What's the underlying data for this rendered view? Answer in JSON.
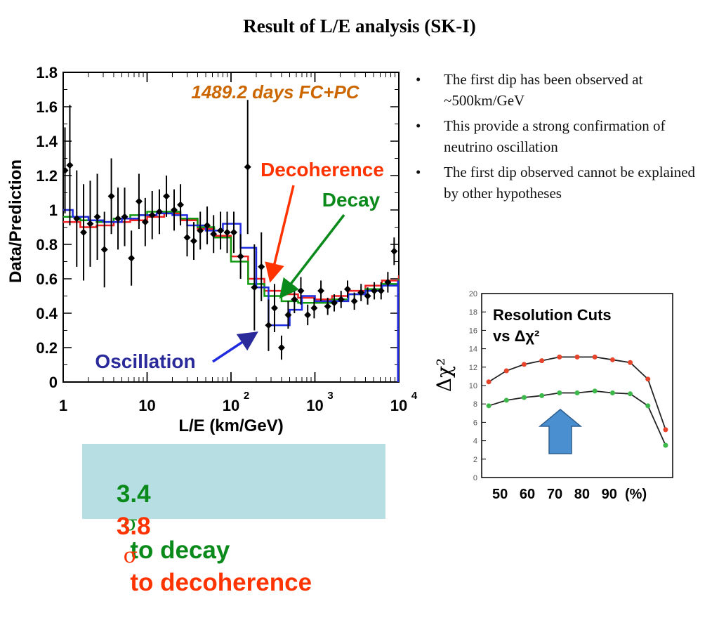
{
  "slide": {
    "title": "Result of L/E analysis (SK-I)",
    "bullets": [
      "The first dip has been observed at ~500km/GeV",
      "This provide a strong confirmation of neutrino oscillation",
      "The first dip observed cannot be explained by other hypotheses"
    ],
    "results": {
      "decay": {
        "value": "3.4",
        "sigma": "σ",
        "text": "to decay",
        "color": "#0a8a1a"
      },
      "decoherence": {
        "value": "3.8",
        "sigma": "σ",
        "text": "to decoherence",
        "color": "#ff3300"
      }
    }
  },
  "chart_data": [
    {
      "type": "scatter",
      "xlabel": "L/E   (km/GeV)",
      "ylabel": "Data/Prediction",
      "xscale": "log",
      "xlim": [
        1,
        10000
      ],
      "ylim": [
        0,
        1.8
      ],
      "xticks": [
        {
          "v": 1,
          "base": "1",
          "exp": ""
        },
        {
          "v": 10,
          "base": "10",
          "exp": ""
        },
        {
          "v": 100,
          "base": "10",
          "exp": "2"
        },
        {
          "v": 1000,
          "base": "10",
          "exp": "3"
        },
        {
          "v": 10000,
          "base": "10",
          "exp": "4"
        }
      ],
      "yticks": [
        "0",
        "0.2",
        "0.4",
        "0.6",
        "0.8",
        "1",
        "1.2",
        "1.4",
        "1.6",
        "1.8"
      ],
      "annotation": {
        "text": "1489.2 days FC+PC",
        "color": "#cc6600"
      },
      "series": [
        {
          "name": "Decoherence",
          "kind": "step",
          "color": "#ee2222",
          "edges": [
            1,
            1.6,
            2.5,
            4,
            6.3,
            10,
            16,
            25,
            40,
            63,
            100,
            160,
            250,
            400,
            630,
            1000,
            1600,
            2500,
            4000,
            6300,
            10000
          ],
          "values": [
            0.93,
            0.9,
            0.91,
            0.93,
            0.94,
            0.96,
            0.98,
            0.94,
            0.89,
            0.85,
            0.73,
            0.6,
            0.53,
            0.51,
            0.49,
            0.48,
            0.5,
            0.53,
            0.56,
            0.59,
            0.62
          ]
        },
        {
          "name": "Decay",
          "kind": "step",
          "color": "#119911",
          "edges": [
            1,
            1.6,
            2.5,
            4,
            6.3,
            10,
            16,
            25,
            40,
            63,
            100,
            160,
            250,
            400,
            630,
            1000,
            1600,
            2500,
            4000,
            6300,
            10000
          ],
          "values": [
            0.96,
            0.94,
            0.93,
            0.95,
            0.97,
            0.99,
            0.99,
            0.95,
            0.9,
            0.84,
            0.7,
            0.57,
            0.5,
            0.47,
            0.46,
            0.46,
            0.48,
            0.51,
            0.54,
            0.57,
            0.6
          ]
        },
        {
          "name": "Oscillation",
          "kind": "step",
          "color": "#1f2bdd",
          "edges": [
            1,
            1.3,
            2,
            3,
            5,
            8,
            13,
            20,
            30,
            50,
            80,
            130,
            200,
            280,
            350,
            500,
            700,
            1000,
            1600,
            2500,
            4000,
            6300,
            10000
          ],
          "values": [
            1.0,
            0.96,
            0.94,
            0.93,
            0.95,
            0.97,
            0.98,
            0.97,
            0.91,
            0.88,
            0.92,
            0.78,
            0.55,
            0.33,
            0.33,
            0.42,
            0.5,
            0.47,
            0.47,
            0.51,
            0.53,
            0.56,
            0.59
          ]
        },
        {
          "name": "Data",
          "kind": "points",
          "color": "#000000",
          "x": [
            1.05,
            1.2,
            1.45,
            1.75,
            2.1,
            2.55,
            3.1,
            3.75,
            4.5,
            5.4,
            6.5,
            8,
            9.5,
            11.5,
            14,
            17,
            21,
            25,
            30,
            36,
            43,
            52,
            62,
            75,
            90,
            108,
            130,
            158,
            190,
            230,
            280,
            330,
            400,
            480,
            570,
            680,
            820,
            980,
            1180,
            1420,
            1700,
            2050,
            2450,
            2950,
            3550,
            4250,
            5100,
            6150,
            7400,
            8800
          ],
          "y": [
            1.23,
            1.26,
            0.95,
            0.87,
            0.92,
            0.96,
            0.77,
            1.08,
            0.95,
            0.96,
            0.72,
            1.05,
            0.93,
            0.97,
            0.99,
            1.08,
            1.0,
            1.03,
            0.84,
            0.82,
            0.88,
            0.91,
            0.86,
            0.88,
            0.87,
            0.87,
            0.73,
            1.25,
            0.55,
            0.67,
            0.33,
            0.43,
            0.2,
            0.39,
            0.48,
            0.53,
            0.39,
            0.43,
            0.53,
            0.44,
            0.46,
            0.48,
            0.54,
            0.47,
            0.52,
            0.5,
            0.53,
            0.53,
            0.58,
            0.76
          ],
          "err": [
            0.25,
            0.35,
            0.28,
            0.28,
            0.25,
            0.25,
            0.22,
            0.22,
            0.18,
            0.17,
            0.16,
            0.16,
            0.14,
            0.14,
            0.13,
            0.12,
            0.12,
            0.12,
            0.11,
            0.11,
            0.11,
            0.11,
            0.11,
            0.11,
            0.12,
            0.12,
            0.13,
            0.39,
            0.25,
            0.2,
            0.15,
            0.14,
            0.07,
            0.08,
            0.08,
            0.08,
            0.06,
            0.06,
            0.06,
            0.05,
            0.05,
            0.05,
            0.05,
            0.05,
            0.05,
            0.05,
            0.05,
            0.05,
            0.06,
            0.08
          ]
        }
      ],
      "arrows": [
        {
          "label": "Decoherence",
          "color": "#ff3300"
        },
        {
          "label": "Decay",
          "color": "#0a8a1a"
        },
        {
          "label": "Oscillation",
          "color": "#2a2a9a"
        }
      ]
    },
    {
      "type": "line",
      "title": "Resolution Cuts",
      "title2": "vs Δχ²",
      "ylabel": "Δχ²",
      "xlabel": "50   60   70   80   90  (%)",
      "ylim": [
        0,
        20
      ],
      "yticks": [
        0,
        2,
        4,
        6,
        8,
        10,
        12,
        14,
        16,
        18,
        20
      ],
      "xlim": [
        48,
        102
      ],
      "series": [
        {
          "name": "decoherence",
          "color": "#e8442c",
          "x": [
            50,
            55,
            60,
            65,
            70,
            75,
            80,
            85,
            90,
            95,
            100
          ],
          "y": [
            10.4,
            11.6,
            12.3,
            12.7,
            13.1,
            13.1,
            13.1,
            12.8,
            12.5,
            10.7,
            5.2
          ]
        },
        {
          "name": "decay",
          "color": "#3db84a",
          "x": [
            50,
            55,
            60,
            65,
            70,
            75,
            80,
            85,
            90,
            95,
            100
          ],
          "y": [
            7.8,
            8.4,
            8.7,
            8.9,
            9.2,
            9.2,
            9.4,
            9.2,
            9.1,
            7.8,
            3.5
          ]
        }
      ],
      "arrow_color": "#4a8fd0"
    }
  ]
}
